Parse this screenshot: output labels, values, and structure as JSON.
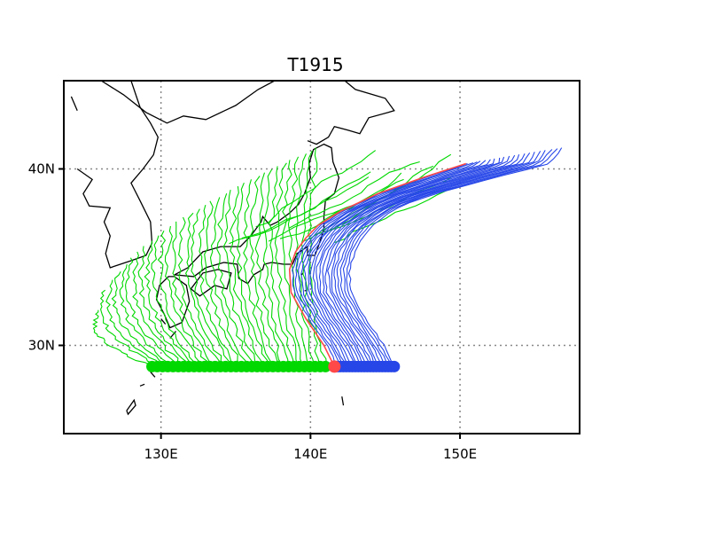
{
  "title": "T1915",
  "map": {
    "lon_range": [
      123.5,
      158.0
    ],
    "lat_range": [
      25.0,
      45.0
    ],
    "grid": true,
    "x_ticks": [
      {
        "value": 130,
        "label": "130E"
      },
      {
        "value": 140,
        "label": "140E"
      },
      {
        "value": 150,
        "label": "150E"
      }
    ],
    "y_ticks": [
      {
        "value": 30,
        "label": "30N"
      },
      {
        "value": 40,
        "label": "40N"
      }
    ],
    "colors": {
      "frame": "#000000",
      "coast": "#000000",
      "grid": "#888888",
      "west_tracks": "#00d800",
      "east_tracks": "#2646e8",
      "reference_track": "#ff4848"
    }
  },
  "track_data": {
    "start_lat": 28.8,
    "west_group": {
      "count": 34,
      "start_lon": [
        129.4,
        141.0
      ],
      "end_lon": [
        125.8,
        140.5
      ],
      "end_lat": [
        32.0,
        41.2
      ]
    },
    "east_group": {
      "count": 20,
      "start_lon": [
        141.8,
        145.6
      ]
    },
    "reference": {
      "lon": [
        141.6,
        140.9,
        139.7,
        138.7,
        138.6,
        139.0,
        139.7,
        140.5,
        142.0,
        144.5,
        147.5,
        150.4
      ],
      "lat": [
        28.8,
        30.0,
        31.5,
        33.0,
        34.3,
        35.3,
        36.1,
        36.8,
        37.6,
        38.6,
        39.5,
        40.3
      ]
    }
  }
}
